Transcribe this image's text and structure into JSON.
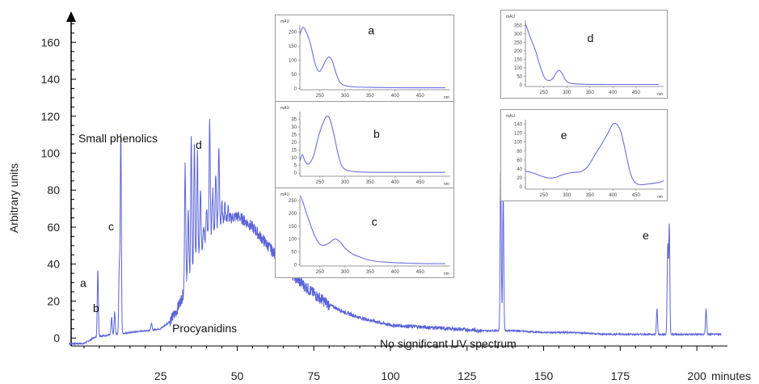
{
  "chart_data": [
    {
      "type": "line",
      "ylabel": "Arbitrary units",
      "xlabel": "minutes",
      "xlim": [
        -5,
        210
      ],
      "ylim": [
        -3,
        175
      ],
      "x_ticks": [
        25,
        50,
        75,
        100,
        125,
        150,
        175,
        200
      ],
      "y_ticks": [
        0,
        20,
        40,
        60,
        80,
        100,
        120,
        140,
        160
      ],
      "line_color": "#5a63d8",
      "grid": false,
      "annotations": [
        "Small phenolics",
        "Procyanidins",
        "No significant UV spectrum"
      ],
      "peak_labels": [
        {
          "label": "a",
          "x": 4.5,
          "y": 36
        },
        {
          "label": "b",
          "x": 9.5,
          "y": 15
        },
        {
          "label": "c",
          "x": 12,
          "y": 112
        },
        {
          "label": "d",
          "x": 41,
          "y": 117
        },
        {
          "label": "e",
          "x": 191,
          "y": 61
        }
      ],
      "series": [
        {
          "baseline": [
            [
              -5,
              -3
            ],
            [
              0,
              -3
            ],
            [
              3,
              0
            ],
            [
              5,
              1
            ],
            [
              10,
              2
            ],
            [
              15,
              3
            ],
            [
              20,
              4
            ],
            [
              25,
              5
            ],
            [
              28,
              9
            ],
            [
              30,
              14
            ],
            [
              32,
              22
            ],
            [
              34,
              32
            ],
            [
              36,
              40
            ],
            [
              38,
              48
            ],
            [
              40,
              54
            ],
            [
              42,
              58
            ],
            [
              44,
              61
            ],
            [
              46,
              63
            ],
            [
              48,
              65
            ],
            [
              50,
              66
            ],
            [
              52,
              64
            ],
            [
              55,
              60
            ],
            [
              58,
              54
            ],
            [
              62,
              46
            ],
            [
              66,
              38
            ],
            [
              70,
              31
            ],
            [
              75,
              24
            ],
            [
              80,
              18
            ],
            [
              85,
              14
            ],
            [
              90,
              11
            ],
            [
              95,
              9
            ],
            [
              100,
              7
            ],
            [
              110,
              6
            ],
            [
              120,
              5
            ],
            [
              130,
              4
            ],
            [
              140,
              4
            ],
            [
              150,
              3
            ],
            [
              160,
              3
            ],
            [
              170,
              2
            ],
            [
              180,
              2
            ],
            [
              190,
              2
            ],
            [
              200,
              2
            ],
            [
              210,
              2
            ]
          ],
          "peaks": [
            [
              4.5,
              37
            ],
            [
              9,
              11
            ],
            [
              10,
              14
            ],
            [
              11.5,
              39
            ],
            [
              12,
              112
            ],
            [
              22,
              8
            ],
            [
              33,
              95
            ],
            [
              34,
              70
            ],
            [
              35,
              110
            ],
            [
              36,
              105
            ],
            [
              37,
              100
            ],
            [
              38,
              82
            ],
            [
              39,
              60
            ],
            [
              40,
              72
            ],
            [
              41,
              117
            ],
            [
              42,
              80
            ],
            [
              43,
              88
            ],
            [
              44,
              105
            ],
            [
              45,
              75
            ],
            [
              46,
              72
            ],
            [
              47,
              70
            ],
            [
              136,
              92
            ],
            [
              136.8,
              79
            ],
            [
              187,
              16
            ],
            [
              190.5,
              50
            ],
            [
              191,
              61
            ],
            [
              203,
              16
            ]
          ]
        }
      ]
    },
    {
      "type": "line",
      "inset_label": "a",
      "xlabel": "nm",
      "ylabel": "mAU",
      "xlim": [
        210,
        510
      ],
      "ylim": [
        -5,
        225
      ],
      "x_ticks": [
        250,
        300,
        350,
        400,
        450
      ],
      "y_ticks": [
        0,
        50,
        100,
        150,
        200
      ],
      "points": [
        [
          210,
          190
        ],
        [
          215,
          215
        ],
        [
          220,
          210
        ],
        [
          230,
          165
        ],
        [
          240,
          90
        ],
        [
          248,
          60
        ],
        [
          255,
          75
        ],
        [
          262,
          100
        ],
        [
          268,
          112
        ],
        [
          275,
          95
        ],
        [
          282,
          55
        ],
        [
          290,
          22
        ],
        [
          300,
          10
        ],
        [
          320,
          5
        ],
        [
          360,
          3
        ],
        [
          420,
          2
        ],
        [
          500,
          2
        ]
      ]
    },
    {
      "type": "line",
      "inset_label": "b",
      "xlabel": "nm",
      "ylabel": "mAU",
      "xlim": [
        210,
        510
      ],
      "ylim": [
        -2,
        40
      ],
      "x_ticks": [
        250,
        300,
        350,
        400,
        450
      ],
      "y_ticks": [
        0,
        5,
        10,
        15,
        20,
        25,
        30,
        35
      ],
      "points": [
        [
          210,
          8
        ],
        [
          215,
          12
        ],
        [
          220,
          8
        ],
        [
          228,
          6
        ],
        [
          238,
          12
        ],
        [
          248,
          25
        ],
        [
          258,
          34
        ],
        [
          264,
          37
        ],
        [
          270,
          35
        ],
        [
          278,
          25
        ],
        [
          288,
          10
        ],
        [
          298,
          3
        ],
        [
          320,
          1
        ],
        [
          380,
          0.5
        ],
        [
          500,
          0.5
        ]
      ]
    },
    {
      "type": "line",
      "inset_label": "c",
      "xlabel": "nm",
      "ylabel": "mAU",
      "xlim": [
        210,
        510
      ],
      "ylim": [
        -5,
        260
      ],
      "x_ticks": [
        250,
        300,
        350,
        400,
        450
      ],
      "y_ticks": [
        0,
        50,
        100,
        150,
        200,
        250
      ],
      "points": [
        [
          210,
          270
        ],
        [
          215,
          250
        ],
        [
          225,
          190
        ],
        [
          238,
          120
        ],
        [
          250,
          80
        ],
        [
          262,
          78
        ],
        [
          272,
          90
        ],
        [
          280,
          100
        ],
        [
          290,
          90
        ],
        [
          300,
          65
        ],
        [
          315,
          42
        ],
        [
          330,
          30
        ],
        [
          350,
          17
        ],
        [
          380,
          10
        ],
        [
          420,
          6
        ],
        [
          460,
          4
        ],
        [
          500,
          4
        ]
      ]
    },
    {
      "type": "line",
      "inset_label": "d",
      "xlabel": "nm",
      "ylabel": "mAU",
      "xlim": [
        210,
        510
      ],
      "ylim": [
        -10,
        380
      ],
      "x_ticks": [
        250,
        300,
        350,
        400,
        450
      ],
      "y_ticks": [
        0,
        50,
        100,
        150,
        200,
        250,
        300,
        350
      ],
      "points": [
        [
          210,
          360
        ],
        [
          214,
          330
        ],
        [
          222,
          270
        ],
        [
          232,
          200
        ],
        [
          242,
          110
        ],
        [
          252,
          40
        ],
        [
          262,
          25
        ],
        [
          270,
          40
        ],
        [
          278,
          75
        ],
        [
          284,
          85
        ],
        [
          290,
          65
        ],
        [
          298,
          25
        ],
        [
          310,
          8
        ],
        [
          340,
          3
        ],
        [
          400,
          2
        ],
        [
          500,
          2
        ]
      ]
    },
    {
      "type": "line",
      "inset_label": "e",
      "xlabel": "nm",
      "ylabel": "mAU",
      "xlim": [
        210,
        510
      ],
      "ylim": [
        -5,
        150
      ],
      "x_ticks": [
        250,
        300,
        350,
        400,
        450
      ],
      "y_ticks": [
        0,
        20,
        40,
        60,
        80,
        100,
        120,
        140
      ],
      "points": [
        [
          210,
          35
        ],
        [
          220,
          33
        ],
        [
          230,
          30
        ],
        [
          245,
          24
        ],
        [
          260,
          20
        ],
        [
          275,
          21
        ],
        [
          290,
          27
        ],
        [
          310,
          32
        ],
        [
          330,
          34
        ],
        [
          345,
          45
        ],
        [
          360,
          70
        ],
        [
          375,
          95
        ],
        [
          388,
          118
        ],
        [
          400,
          140
        ],
        [
          410,
          138
        ],
        [
          418,
          120
        ],
        [
          428,
          75
        ],
        [
          438,
          30
        ],
        [
          448,
          10
        ],
        [
          460,
          5
        ],
        [
          480,
          7
        ],
        [
          500,
          10
        ],
        [
          510,
          14
        ]
      ]
    }
  ]
}
